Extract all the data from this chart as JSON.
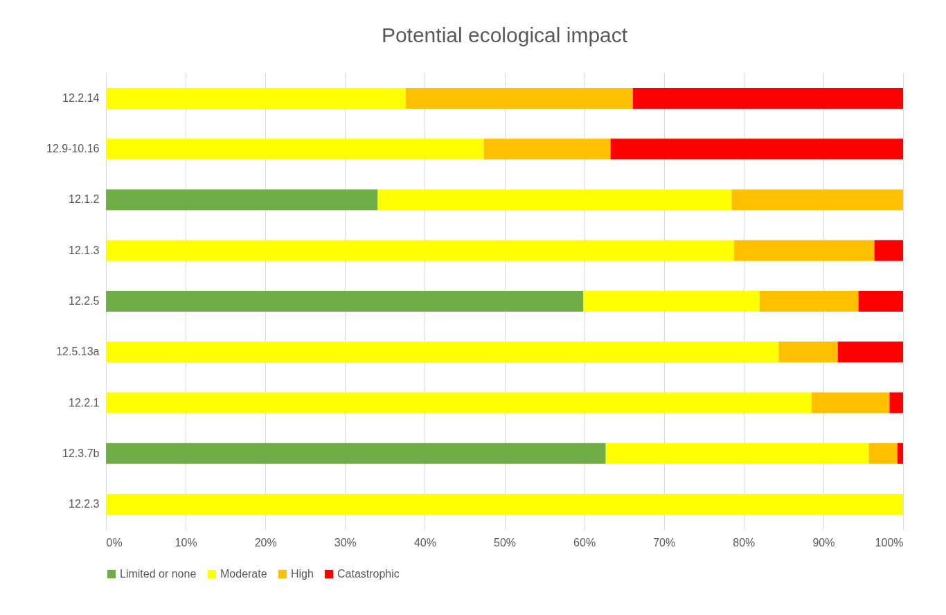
{
  "chart_data": {
    "type": "bar",
    "title": "Potential ecological impact",
    "orientation": "horizontal",
    "stacked": true,
    "categories": [
      "12.2.14",
      "12.9-10.16",
      "12.1.2",
      "12.1.3",
      "12.2.5",
      "12.5.13a",
      "12.2.1",
      "12.3.7b",
      "12.2.3"
    ],
    "series": [
      {
        "name": "Limited or none",
        "color": "#70ad47",
        "values": [
          null,
          null,
          34.1,
          null,
          59.9,
          null,
          null,
          62.7,
          null
        ]
      },
      {
        "name": "Moderate",
        "color": "#ffff00",
        "values": [
          37.6,
          47.4,
          44.4,
          78.8,
          22.1,
          84.4,
          88.5,
          33.0,
          100
        ]
      },
      {
        "name": "High",
        "color": "#ffc000",
        "values": [
          28.5,
          15.9,
          21.5,
          17.6,
          12.4,
          7.4,
          9.8,
          3.6,
          null
        ]
      },
      {
        "name": "Catastrophic",
        "color": "#ff0000",
        "values": [
          33.9,
          36.7,
          null,
          3.6,
          5.6,
          8.2,
          1.7,
          0.7,
          null
        ]
      }
    ],
    "xlim": [
      0,
      100
    ],
    "xticks": [
      {
        "value": 0,
        "label": "0%"
      },
      {
        "value": 10,
        "label": "10%"
      },
      {
        "value": 20,
        "label": "20%"
      },
      {
        "value": 30,
        "label": "30%"
      },
      {
        "value": 40,
        "label": "40%"
      },
      {
        "value": 50,
        "label": "50%"
      },
      {
        "value": 60,
        "label": "60%"
      },
      {
        "value": 70,
        "label": "70%"
      },
      {
        "value": 80,
        "label": "80%"
      },
      {
        "value": 90,
        "label": "90%"
      },
      {
        "value": 100,
        "label": "100%"
      }
    ],
    "grid": "x",
    "legend": "bottom"
  }
}
